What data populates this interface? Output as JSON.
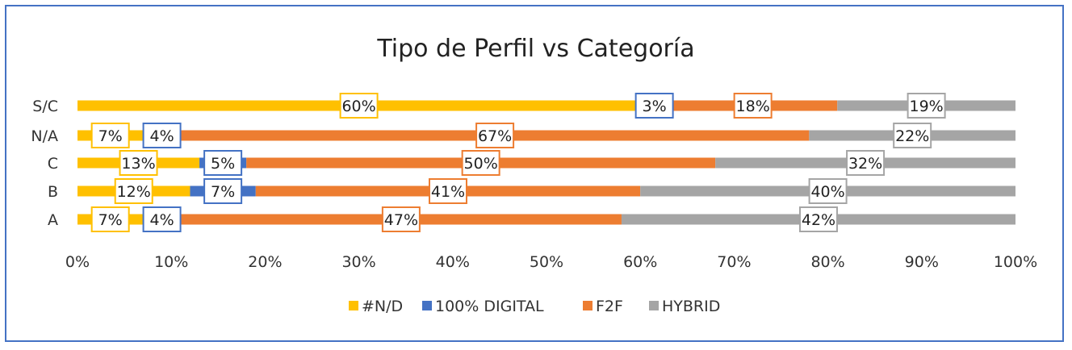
{
  "chart_data": {
    "type": "bar",
    "orientation": "horizontal",
    "stacked": "percent",
    "title": "Tipo de Perfil vs Categoría",
    "categories": [
      "S/C",
      "N/A",
      "C",
      "B",
      "A"
    ],
    "series": [
      {
        "name": "#N/D",
        "color": "#ffc000",
        "values": [
          60,
          7,
          13,
          12,
          7
        ],
        "labels": [
          "60%",
          "7%",
          "13%",
          "12%",
          "7%"
        ]
      },
      {
        "name": "100% DIGITAL",
        "color": "#4472c4",
        "values": [
          3,
          4,
          5,
          7,
          4
        ],
        "labels": [
          "3%",
          "4%",
          "5%",
          "7%",
          "4%"
        ]
      },
      {
        "name": "F2F",
        "color": "#ed7d31",
        "values": [
          18,
          67,
          50,
          41,
          47
        ],
        "labels": [
          "18%",
          "67%",
          "50%",
          "41%",
          "47%"
        ]
      },
      {
        "name": "HYBRID",
        "color": "#a5a5a5",
        "values": [
          19,
          22,
          32,
          40,
          42
        ],
        "labels": [
          "19%",
          "22%",
          "32%",
          "40%",
          "42%"
        ]
      }
    ],
    "xlim": [
      0,
      100
    ],
    "x_ticks": [
      "0%",
      "10%",
      "20%",
      "30%",
      "40%",
      "50%",
      "60%",
      "70%",
      "80%",
      "90%",
      "100%"
    ],
    "grid": false,
    "legend_position": "bottom"
  }
}
